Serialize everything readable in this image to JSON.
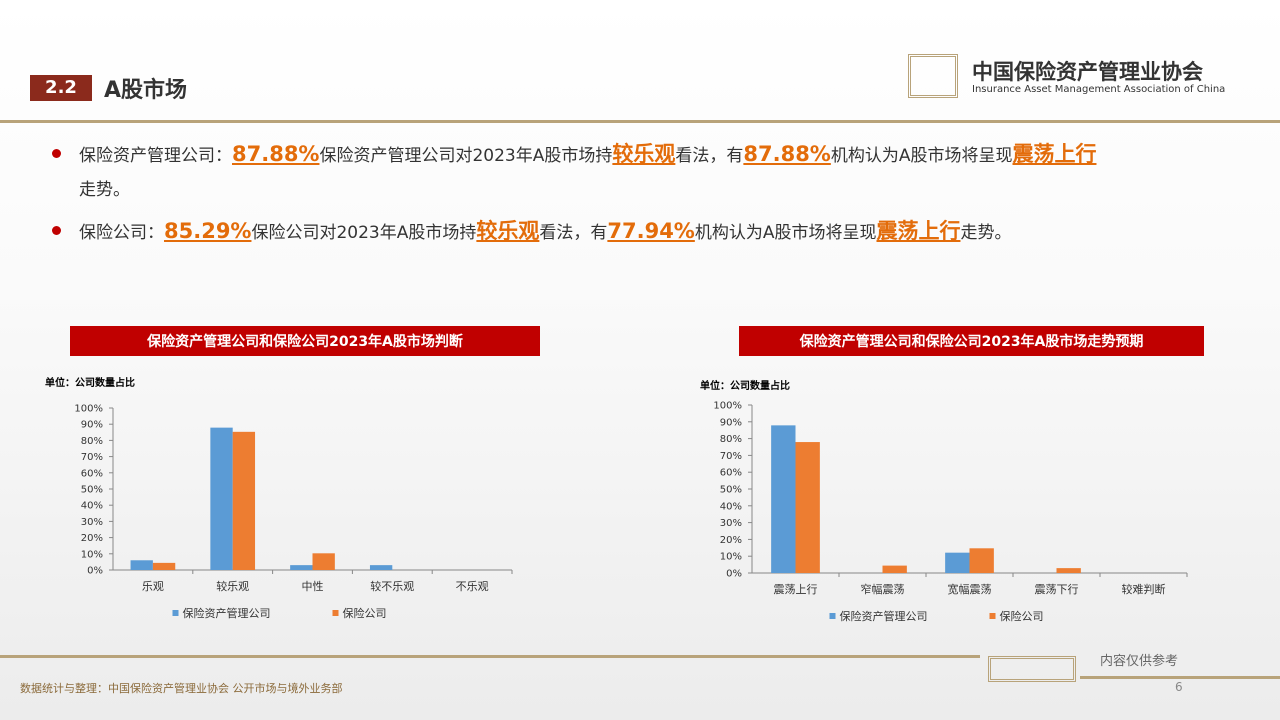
{
  "header": {
    "section": "2.2",
    "title": "A股市场"
  },
  "logo": {
    "name": "中国保险资产管理业协会",
    "name_en": "Insurance Asset Management Association of China"
  },
  "bullets": [
    {
      "parts": [
        "保险资产管理公司：",
        "87.88%",
        "保险资产管理公司对2023年A股市场持",
        "较乐观",
        "看法，有",
        "87.88%",
        "机构认为A股市场将呈现",
        "震荡上行",
        "走势。"
      ]
    },
    {
      "parts": [
        "保险公司：",
        "85.29%",
        "保险公司对2023年A股市场持",
        "较乐观",
        "看法，有",
        "77.94%",
        "机构认为A股市场将呈现",
        "震荡上行",
        "走势。"
      ]
    }
  ],
  "chart_data": [
    {
      "type": "bar",
      "title": "保险资产管理公司和保险公司2023年A股市场判断",
      "subtitle": "单位：公司数量占比",
      "categories": [
        "乐观",
        "较乐观",
        "中性",
        "较不乐观",
        "不乐观"
      ],
      "series": [
        {
          "name": "保险资产管理公司",
          "color": "#5b9bd5",
          "values": [
            6,
            87.88,
            3,
            3,
            0
          ]
        },
        {
          "name": "保险公司",
          "color": "#ed7d31",
          "values": [
            4.4,
            85.29,
            10.3,
            0,
            0
          ]
        }
      ],
      "ylim": [
        0,
        100
      ],
      "yticks": [
        {
          "value": 0,
          "label": "0%"
        },
        {
          "value": 10,
          "label": "10%"
        },
        {
          "value": 20,
          "label": "20%"
        },
        {
          "value": 30,
          "label": "30%"
        },
        {
          "value": 40,
          "label": "40%"
        },
        {
          "value": 50,
          "label": "50%"
        },
        {
          "value": 60,
          "label": "60%"
        },
        {
          "value": 70,
          "label": "70%"
        },
        {
          "value": 80,
          "label": "80%"
        },
        {
          "value": 90,
          "label": "90%"
        },
        {
          "value": 100,
          "label": "100%"
        }
      ],
      "legend": "bottom"
    },
    {
      "type": "bar",
      "title": "保险资产管理公司和保险公司2023年A股市场走势预期",
      "subtitle": "单位：公司数量占比",
      "categories": [
        "震荡上行",
        "窄幅震荡",
        "宽幅震荡",
        "震荡下行",
        "较难判断"
      ],
      "series": [
        {
          "name": "保险资产管理公司",
          "color": "#5b9bd5",
          "values": [
            87.88,
            0,
            12.1,
            0,
            0
          ]
        },
        {
          "name": "保险公司",
          "color": "#ed7d31",
          "values": [
            77.94,
            4.4,
            14.7,
            2.9,
            0
          ]
        }
      ],
      "ylim": [
        0,
        100
      ],
      "yticks": [
        {
          "value": 0,
          "label": "0%"
        },
        {
          "value": 10,
          "label": "10%"
        },
        {
          "value": 20,
          "label": "20%"
        },
        {
          "value": 30,
          "label": "30%"
        },
        {
          "value": 40,
          "label": "40%"
        },
        {
          "value": 50,
          "label": "50%"
        },
        {
          "value": 60,
          "label": "60%"
        },
        {
          "value": 70,
          "label": "70%"
        },
        {
          "value": 80,
          "label": "80%"
        },
        {
          "value": 90,
          "label": "90%"
        },
        {
          "value": 100,
          "label": "100%"
        }
      ],
      "legend": "bottom"
    }
  ],
  "footer": {
    "source": "数据统计与整理：中国保险资产管理业协会 公开市场与境外业务部",
    "note": "内容仅供参考",
    "page": "6"
  }
}
